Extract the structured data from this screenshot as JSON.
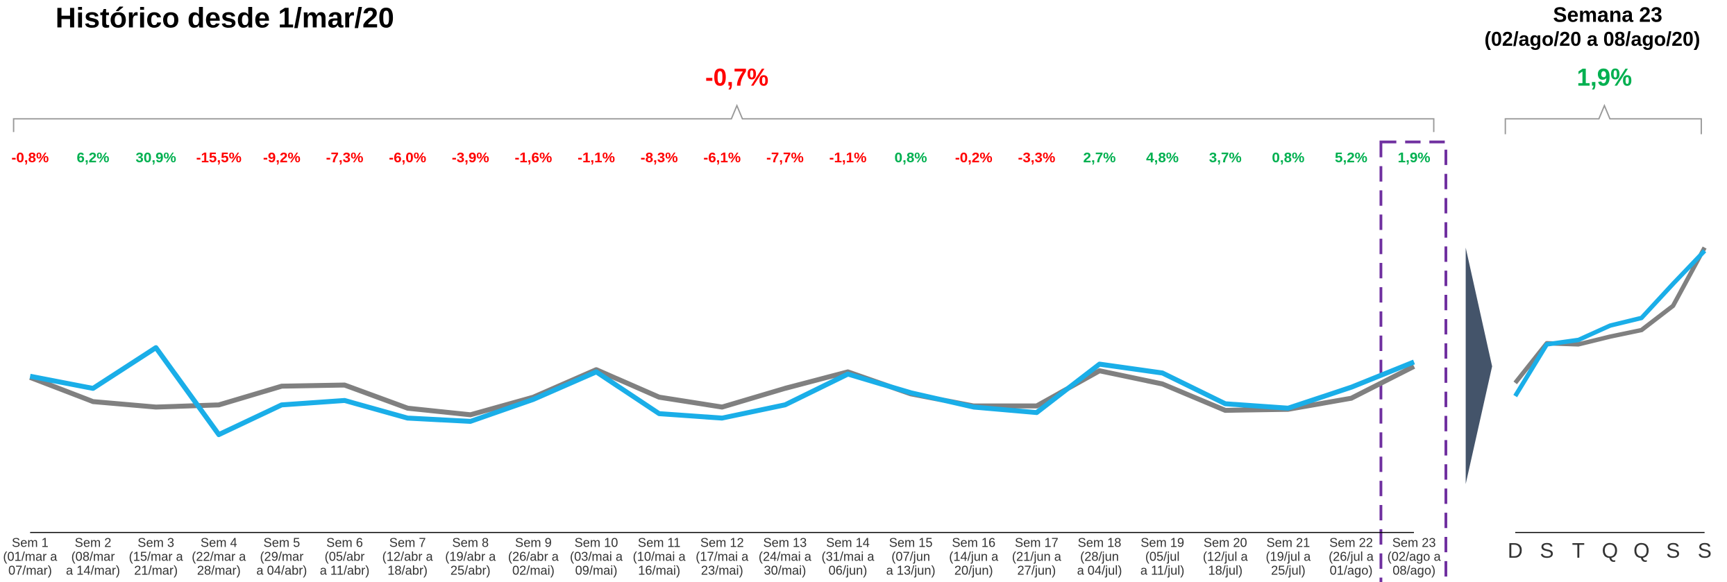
{
  "chart_data": [
    {
      "type": "line",
      "title": "Histórico desde 1/mar/20",
      "total_label": "-0,7%",
      "categories": [
        "Sem 1\n(01/mar a\n07/mar)",
        "Sem 2\n(08/mar\na 14/mar)",
        "Sem 3\n(15/mar a\n21/mar)",
        "Sem 4\n(22/mar a\n28/mar)",
        "Sem 5\n(29/mar\na 04/abr)",
        "Sem 6\n(05/abr\na 11/abr)",
        "Sem 7\n(12/abr a\n18/abr)",
        "Sem 8\n(19/abr a\n25/abr)",
        "Sem 9\n(26/abr a\n02/mai)",
        "Sem 10\n(03/mai a\n09/mai)",
        "Sem 11\n(10/mai a\n16/mai)",
        "Sem 12\n(17/mai a\n23/mai)",
        "Sem 13\n(24/mai a\n30/mai)",
        "Sem 14\n(31/mai a\n06/jun)",
        "Sem 15\n(07/jun\na 13/jun)",
        "Sem 16\n(14/jun a\n20/jun)",
        "Sem 17\n(21/jun a\n27/jun)",
        "Sem 18\n(28/jun\na 04/jul)",
        "Sem 19\n(05/jul\na 11/jul)",
        "Sem 20\n(12/jul a\n18/jul)",
        "Sem 21\n(19/jul a\n25/jul)",
        "Sem 22\n(26/jul a\n01/ago)",
        "Sem 23\n(02/ago a\n08/ago)"
      ],
      "week_labels": [
        "-0,8%",
        "6,2%",
        "30,9%",
        "-15,5%",
        "-9,2%",
        "-7,3%",
        "-6,0%",
        "-3,9%",
        "-1,6%",
        "-1,1%",
        "-8,3%",
        "-6,1%",
        "-7,7%",
        "-1,1%",
        "0,8%",
        "-0,2%",
        "-3,3%",
        "2,7%",
        "4,8%",
        "3,7%",
        "0,8%",
        "5,2%",
        "1,9%"
      ],
      "positive_color": "#00b050",
      "negative_color": "#ff0000",
      "series": [
        {
          "color": "#808080",
          "values": [
            141,
            119,
            114,
            116,
            133,
            134,
            113,
            107,
            123,
            148,
            123,
            114,
            131,
            146,
            126,
            115,
            115,
            147,
            135,
            111,
            112,
            122,
            151
          ]
        },
        {
          "color": "#1aaee8",
          "values": [
            142,
            131,
            168,
            89,
            116,
            120,
            104,
            101,
            121,
            146,
            108,
            104,
            116,
            144,
            127,
            114,
            109,
            153,
            145,
            117,
            113,
            132,
            155
          ]
        }
      ],
      "ylim": [
        0,
        300
      ]
    },
    {
      "type": "line",
      "title": "Semana 23",
      "subtitle": "(02/ago/20 a 08/ago/20)",
      "total_label": "1,9%",
      "categories": [
        "D",
        "S",
        "T",
        "Q",
        "Q",
        "S",
        "S"
      ],
      "positive_color": "#00b050",
      "negative_color": "#ff0000",
      "series": [
        {
          "color": "#808080",
          "values": [
            136,
            172,
            171,
            178,
            184,
            206,
            259
          ]
        },
        {
          "color": "#1aaee8",
          "values": [
            124,
            171,
            175,
            188,
            195,
            226,
            256
          ]
        }
      ],
      "ylim": [
        0,
        300
      ]
    }
  ]
}
